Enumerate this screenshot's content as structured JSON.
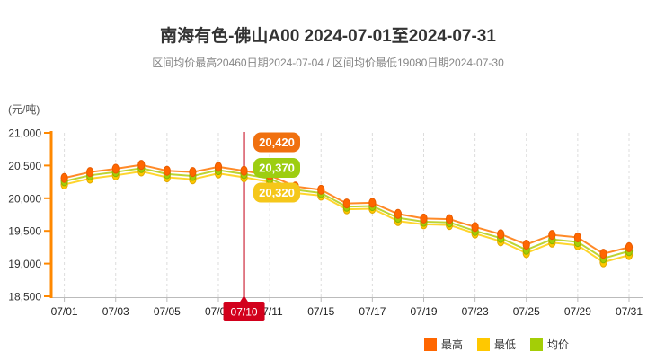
{
  "header": {
    "title": "南海有色-佛山A00 2024-07-01至2024-07-31",
    "subtitle": "区间均价最高20460日期2024-07-04 / 区间均价最低19080日期2024-07-30"
  },
  "colors": {
    "title_text": "#333333",
    "subtitle_text": "#868686",
    "axis_y": "#FF8800",
    "axis_x": "#BBBBBB",
    "grid": "#DCDCDC",
    "tick_label": "#333333",
    "crosshair": "#C40016",
    "callout_box": "#D2001C",
    "callout_text": "#FFFFFF"
  },
  "chart_data": {
    "type": "line",
    "title": "南海有色-佛山A00 2024-07-01至2024-07-31",
    "subtitle": "区间均价最高20460日期2024-07-04 / 区间均价最低19080日期2024-07-30",
    "ylabel": "(元/吨)",
    "xlabel": "",
    "ylim": [
      18500,
      21000
    ],
    "grid": "vertical-dashed",
    "legend_position": "bottom-right",
    "y_tick_values": [
      21000,
      20500,
      20000,
      19500,
      19000,
      18500
    ],
    "y_tick_labels": [
      "21,000",
      "20,500",
      "20,000",
      "19,500",
      "19,000",
      "18,500"
    ],
    "categories": [
      "07/01",
      "07/02",
      "07/03",
      "07/04",
      "07/05",
      "07/08",
      "07/09",
      "07/10",
      "07/11",
      "07/12",
      "07/15",
      "07/16",
      "07/17",
      "07/18",
      "07/19",
      "07/22",
      "07/23",
      "07/24",
      "07/25",
      "07/26",
      "07/29",
      "07/30",
      "07/31"
    ],
    "x_tick_indices": [
      0,
      2,
      4,
      6,
      8,
      10,
      12,
      14,
      16,
      18,
      20,
      22
    ],
    "x_tick_labels": [
      "07/01",
      "07/03",
      "07/05",
      "07/09",
      "07/11",
      "07/15",
      "07/17",
      "07/19",
      "07/23",
      "07/25",
      "07/29",
      "07/31"
    ],
    "series": [
      {
        "name": "最高",
        "color": "#FF6600",
        "line_color": "#FF8A28",
        "marker_stroke": "#E85C00",
        "values": [
          20310,
          20400,
          20450,
          20510,
          20420,
          20400,
          20480,
          20420,
          20350,
          20180,
          20130,
          19920,
          19930,
          19760,
          19690,
          19680,
          19560,
          19450,
          19290,
          19440,
          19400,
          19150,
          19250
        ]
      },
      {
        "name": "最低",
        "color": "#FFC800",
        "line_color": "#FFD52D",
        "marker_stroke": "#E0A800",
        "values": [
          20210,
          20300,
          20350,
          20410,
          20320,
          20290,
          20380,
          20320,
          20250,
          20080,
          20040,
          19830,
          19840,
          19650,
          19600,
          19590,
          19460,
          19340,
          19160,
          19320,
          19280,
          19020,
          19130
        ]
      },
      {
        "name": "均价",
        "color": "#A4CE06",
        "line_color": "#BCD434",
        "marker_stroke": "#8CB400",
        "values": [
          20260,
          20350,
          20400,
          20460,
          20370,
          20340,
          20430,
          20370,
          20300,
          20130,
          20080,
          19870,
          19880,
          19700,
          19640,
          19630,
          19500,
          19390,
          19210,
          19370,
          19330,
          19080,
          19190
        ]
      }
    ],
    "highlight": {
      "category": "07/10",
      "index": 7,
      "entries": [
        {
          "series": "最高",
          "value_display": "20,420",
          "color": "#F0700F"
        },
        {
          "series": "均价",
          "value_display": "20,370",
          "color": "#9DCE10"
        },
        {
          "series": "最低",
          "value_display": "20,320",
          "color": "#F5C71A"
        }
      ]
    }
  }
}
